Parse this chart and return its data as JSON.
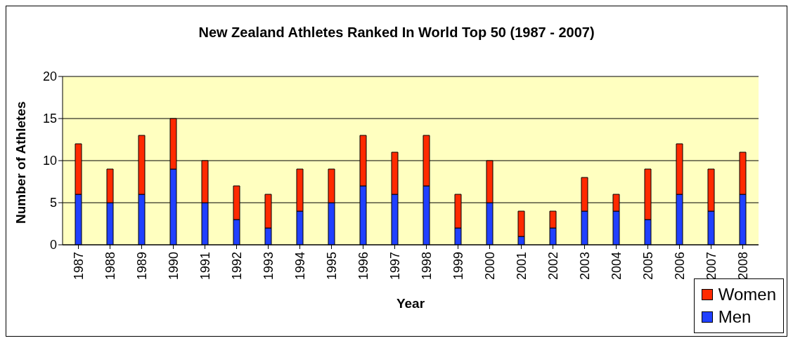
{
  "chart_data": {
    "type": "bar",
    "title": "New Zealand Athletes Ranked In World Top 50 (1987 - 2007)",
    "xlabel": "Year",
    "ylabel": "Number of Athletes",
    "categories": [
      "1987",
      "1988",
      "1989",
      "1990",
      "1991",
      "1992",
      "1993",
      "1994",
      "1995",
      "1996",
      "1997",
      "1998",
      "1999",
      "2000",
      "2001",
      "2002",
      "2003",
      "2004",
      "2005",
      "2006",
      "2007",
      "2008"
    ],
    "series": [
      {
        "name": "Men",
        "color": "#2040ff",
        "values": [
          6,
          5,
          6,
          9,
          5,
          3,
          2,
          4,
          5,
          7,
          6,
          7,
          2,
          5,
          1,
          2,
          4,
          4,
          3,
          6,
          4,
          6
        ]
      },
      {
        "name": "Women",
        "color": "#ff2a00",
        "values": [
          6,
          4,
          7,
          6,
          5,
          4,
          4,
          5,
          4,
          6,
          5,
          6,
          4,
          5,
          3,
          2,
          4,
          2,
          6,
          6,
          5,
          5
        ]
      }
    ],
    "stacked": true,
    "ylim": [
      0,
      20
    ],
    "yticks": [
      0,
      5,
      10,
      15,
      20
    ],
    "grid": "y",
    "legend": "bottom right"
  }
}
